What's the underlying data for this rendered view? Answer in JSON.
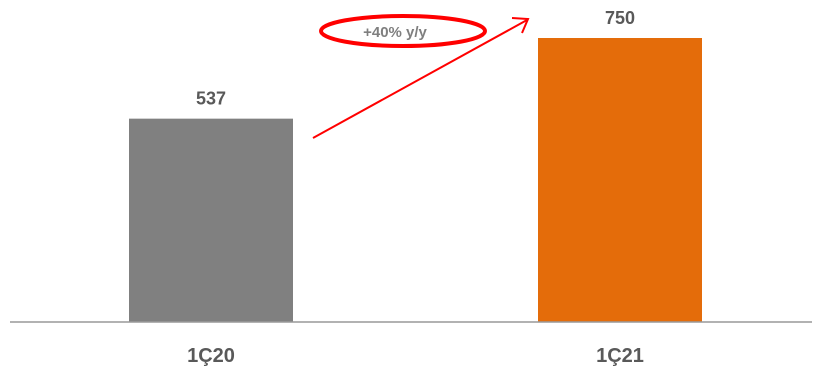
{
  "chart_data": {
    "type": "bar",
    "categories": [
      "1Ç20",
      "1Ç21"
    ],
    "values": [
      537,
      750
    ],
    "value_labels": [
      "537",
      "750"
    ],
    "bar_colors": [
      "#808080",
      "#e46c0a"
    ],
    "ylim": [
      0,
      750
    ],
    "grid": false,
    "legend": "none",
    "annotation": {
      "text": "+40% y/y",
      "color": "#ff0000"
    }
  },
  "colors": {
    "axis": "#999999",
    "label": "#595959",
    "annotation_text": "#7f7f7f"
  }
}
